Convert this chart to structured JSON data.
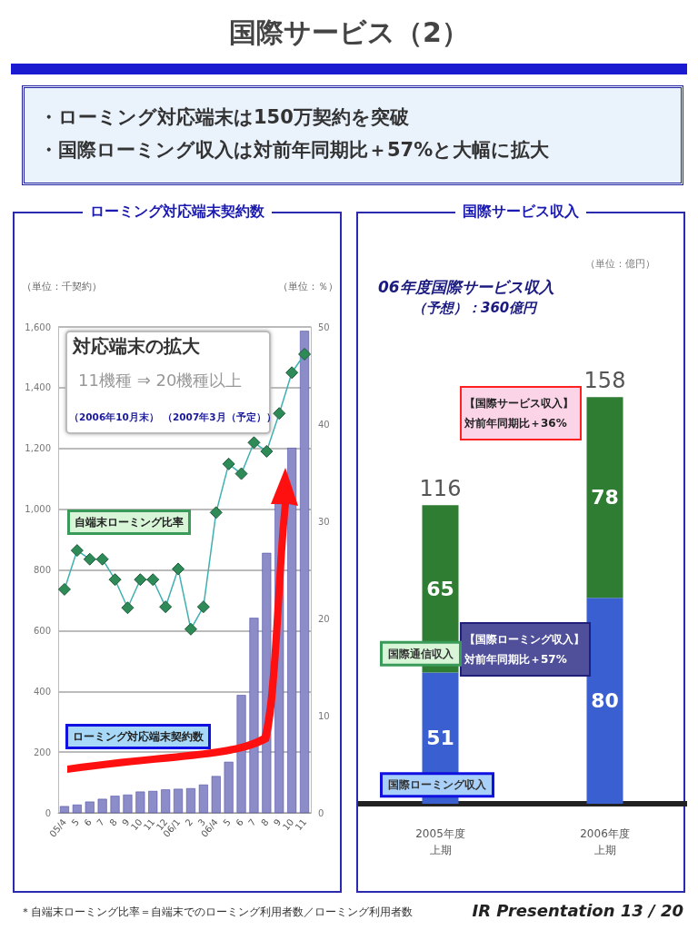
{
  "chart_data": [
    {
      "type": "other",
      "title": "国際サービス（2）",
      "annotations": [
        "・ローミング対応端末は150万契約を突破",
        "・国際ローミング収入は対前年同期比＋57%と大幅に拡大"
      ]
    },
    {
      "type": "bar",
      "title": "ローミング対応端末契約数",
      "ylabel": "（単位：千契約）",
      "y2label": "（単位：％）",
      "categories": [
        "05/4",
        "5",
        "6",
        "7",
        "8",
        "9",
        "10",
        "11",
        "12",
        "06/1",
        "2",
        "3",
        "06/4",
        "5",
        "6",
        "7",
        "8",
        "9",
        "10",
        "11"
      ],
      "series": [
        {
          "name": "ローミング対応端末契約数",
          "color": "#8c8cc8",
          "values": [
            22,
            27,
            37,
            46,
            56,
            60,
            70,
            72,
            77,
            79,
            81,
            93,
            121,
            168,
            388,
            642,
            856,
            1017,
            1202,
            1587
          ]
        },
        {
          "name": "自端末ローミング比率",
          "type": "line",
          "axis": "y2",
          "color": "#2e8b57",
          "values": [
            23.0,
            27.0,
            26.1,
            26.1,
            24.0,
            21.1,
            24.0,
            24.0,
            21.2,
            25.1,
            18.9,
            21.2,
            30.9,
            35.9,
            34.9,
            38.1,
            37.2,
            41.1,
            45.3,
            47.2
          ]
        }
      ],
      "ylim": [
        0,
        1600
      ],
      "yticks": [
        0,
        {
          "value": 200,
          "label": "200"
        },
        {
          "value": 400,
          "label": "400"
        },
        {
          "value": 600,
          "label": "600"
        },
        {
          "value": 800,
          "label": "800"
        },
        {
          "value": 1000,
          "label": "1,000"
        },
        {
          "value": 1200,
          "label": "1,200"
        },
        {
          "value": 1400,
          "label": "1,400"
        },
        {
          "value": 1600,
          "label": "1,600"
        }
      ],
      "y2lim": [
        0,
        50
      ],
      "y2ticks": [
        0,
        10,
        20,
        30,
        40,
        50
      ],
      "grid": "y",
      "legend": false,
      "marker": "diamond",
      "annotations": [
        "対応端末の拡大",
        "11機種 ⇒ 20機種以上",
        "（2006年10月末）",
        "（2007年3月（予定））"
      ]
    },
    {
      "type": "bar",
      "title": "国際サービス収入",
      "stacked": true,
      "data_labels": true,
      "legend": false,
      "categories": [
        "2005年度上期",
        "2006年度上期"
      ],
      "series": [
        {
          "name": "国際ローミング収入",
          "color": "#3a5fd0",
          "values": [
            51,
            80
          ]
        },
        {
          "name": "国際通信収入",
          "color": "#2e7d32",
          "values": [
            65,
            78
          ]
        }
      ],
      "totals": [
        "116",
        "158"
      ],
      "annotations": [
        "（単位：億円）",
        "06年度国際サービス収入",
        "（予想）：360億円",
        "【国際サービス収入】対前年同期比＋36%",
        "【国際ローミング収入】対前年同期比＋57%"
      ]
    },
    {
      "type": "other",
      "annotations": [
        "＊自端末ローミング比率＝自端末でのローミング利用者数／ローミング利用者数",
        "IR Presentation 13 / 20"
      ]
    }
  ]
}
